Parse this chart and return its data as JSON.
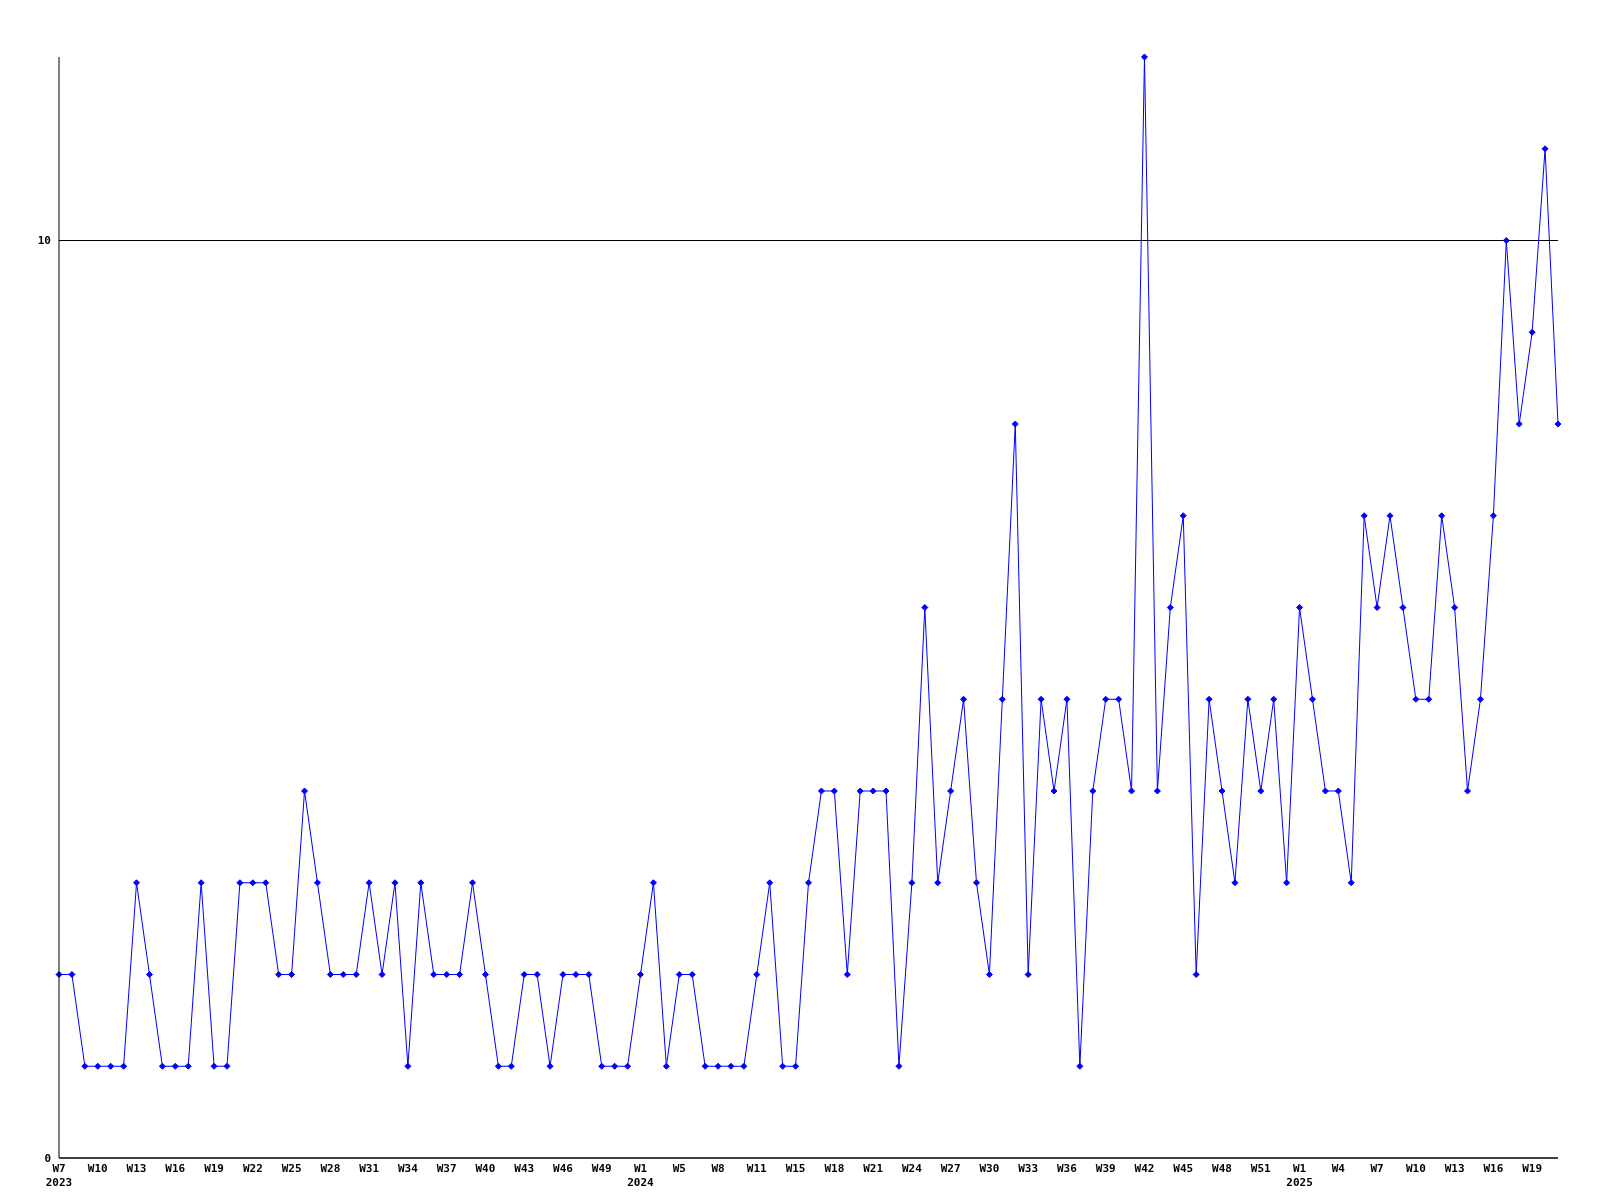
{
  "chart_data": {
    "type": "line",
    "categories": [
      "W7 2023",
      null,
      null,
      "W10",
      null,
      null,
      "W13",
      null,
      null,
      "W16",
      null,
      null,
      "W19",
      null,
      null,
      "W22",
      null,
      null,
      "W25",
      null,
      null,
      "W28",
      null,
      null,
      "W31",
      null,
      null,
      "W34",
      null,
      null,
      "W37",
      null,
      null,
      "W40",
      null,
      null,
      "W43",
      null,
      null,
      "W46",
      null,
      null,
      "W49",
      null,
      null,
      "W1 2024",
      null,
      null,
      "W5",
      null,
      null,
      "W8",
      null,
      null,
      "W11",
      null,
      null,
      "W15",
      null,
      null,
      "W18",
      null,
      null,
      "W21",
      null,
      null,
      "W24",
      null,
      null,
      "W27",
      null,
      null,
      "W30",
      null,
      null,
      "W33",
      null,
      null,
      "W36",
      null,
      null,
      "W39",
      null,
      null,
      "W42",
      null,
      null,
      "W45",
      null,
      null,
      "W48",
      null,
      null,
      "W51",
      null,
      null,
      "W1 2025",
      null,
      null,
      "W4",
      null,
      null,
      "W7",
      null,
      null,
      "W10",
      null,
      null,
      "W13",
      null,
      null,
      "W16",
      null,
      null,
      "W19",
      null,
      null
    ],
    "series": [
      {
        "color": "#0000ff",
        "values": [
          2,
          2,
          1,
          1,
          1,
          1,
          3,
          2,
          1,
          1,
          1,
          3,
          1,
          1,
          3,
          3,
          3,
          2,
          2,
          4,
          3,
          2,
          2,
          2,
          3,
          2,
          3,
          1,
          3,
          2,
          2,
          2,
          3,
          2,
          1,
          1,
          2,
          2,
          1,
          2,
          2,
          2,
          1,
          1,
          1,
          2,
          3,
          1,
          2,
          2,
          1,
          1,
          1,
          1,
          2,
          3,
          1,
          1,
          3,
          4,
          4,
          2,
          4,
          4,
          4,
          1,
          3,
          6,
          3,
          4,
          5,
          3,
          2,
          5,
          8,
          2,
          5,
          4,
          5,
          1,
          4,
          5,
          5,
          4,
          12,
          4,
          6,
          7,
          2,
          5,
          4,
          3,
          5,
          4,
          5,
          3,
          6,
          5,
          4,
          4,
          3,
          7,
          6,
          7,
          6,
          5,
          5,
          7,
          6,
          4,
          5,
          7,
          10,
          8,
          9,
          11,
          8
        ]
      }
    ],
    "ylim": [
      0,
      12
    ],
    "yticks": [
      0,
      10
    ],
    "grid": "y",
    "marker": "diamond",
    "line_style": "solid"
  }
}
